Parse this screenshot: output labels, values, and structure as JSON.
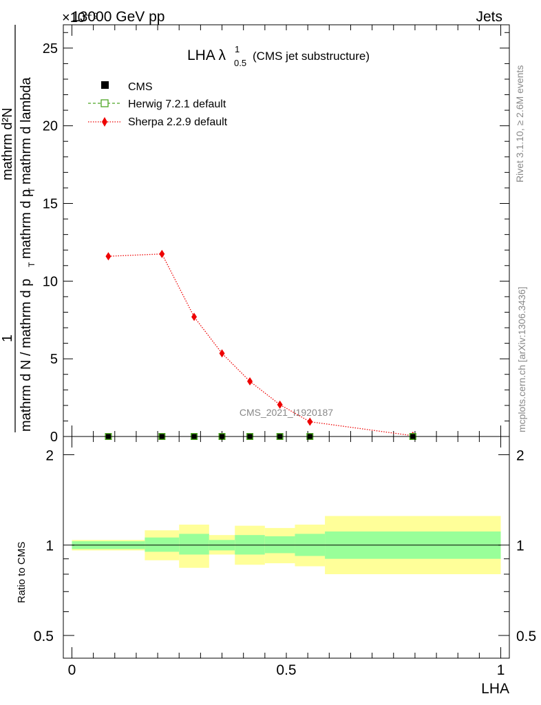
{
  "header": {
    "left": "13000 GeV pp",
    "right": "Jets",
    "exponent": "×10⁻⁹"
  },
  "side_labels": {
    "top": "Rivet 3.1.10, ≥ 2.6M events",
    "bottom": "mcplots.cern.ch [arXiv:1306.3436]"
  },
  "watermark": "CMS_2021_I1920187",
  "chart_data": [
    {
      "type": "line",
      "title_main": "LHA λ",
      "title_sup": "1",
      "title_sub": "0.5",
      "title_suffix": "(CMS jet substructure)",
      "ylabel_numerator": "1",
      "ylabel_denominator": "mathrm d N / mathrm d p_T mathrm d p_T mathrm d lambda",
      "ylabel_lines": [
        "1",
        "mathrm d N / mathrm d p",
        "T",
        "mathrm d p",
        "T",
        "mathrm d lambda",
        "mathrm d²N"
      ],
      "xlim": [
        -0.02,
        1.02
      ],
      "ylim": [
        0,
        26.5
      ],
      "y_ticks": [
        0,
        5,
        10,
        15,
        20,
        25
      ],
      "y_tick_labels": [
        "0",
        "5",
        "10",
        "15",
        "20",
        "25"
      ],
      "legend": [
        {
          "name": "CMS",
          "marker": "square",
          "color": "#000000"
        },
        {
          "name": "Herwig 7.2.1 default",
          "marker": "open-square",
          "color": "#4aa320"
        },
        {
          "name": "Sherpa 2.2.9 default",
          "marker": "diamond",
          "color": "#ee0000"
        }
      ],
      "series": [
        {
          "name": "CMS",
          "x": [
            0.085,
            0.21,
            0.285,
            0.35,
            0.415,
            0.485,
            0.555,
            0.795
          ],
          "y": [
            0.0,
            0.0,
            0.0,
            0.0,
            0.0,
            0.0,
            0.0,
            0.0
          ]
        },
        {
          "name": "Herwig 7.2.1 default",
          "x": [
            0.085,
            0.21,
            0.285,
            0.35,
            0.415,
            0.485,
            0.555,
            0.795
          ],
          "y": [
            0.0,
            0.0,
            0.0,
            0.0,
            0.0,
            0.0,
            0.0,
            0.0
          ]
        },
        {
          "name": "Sherpa 2.2.9 default",
          "x": [
            0.085,
            0.21,
            0.285,
            0.35,
            0.415,
            0.485,
            0.555,
            0.795
          ],
          "y": [
            11.6,
            11.75,
            7.7,
            5.35,
            3.55,
            2.05,
            0.95,
            0.05
          ]
        }
      ]
    },
    {
      "type": "area",
      "ylabel": "Ratio to CMS",
      "xlabel": "LHA",
      "xlim": [
        -0.02,
        1.02
      ],
      "ylim": [
        0.42,
        2.3
      ],
      "y_ticks": [
        0.5,
        1,
        2
      ],
      "y_tick_labels": [
        "0.5",
        "1",
        "2"
      ],
      "x_ticks": [
        0,
        0.5,
        1
      ],
      "x_tick_labels": [
        "0",
        "0.5",
        "1"
      ],
      "bins": [
        {
          "x0": 0.0,
          "x1": 0.17,
          "in_lo": 0.97,
          "in_hi": 1.03,
          "out_lo": 0.96,
          "out_hi": 1.04
        },
        {
          "x0": 0.17,
          "x1": 0.25,
          "in_lo": 0.95,
          "in_hi": 1.06,
          "out_lo": 0.89,
          "out_hi": 1.12
        },
        {
          "x0": 0.25,
          "x1": 0.32,
          "in_lo": 0.93,
          "in_hi": 1.09,
          "out_lo": 0.84,
          "out_hi": 1.17
        },
        {
          "x0": 0.32,
          "x1": 0.38,
          "in_lo": 0.96,
          "in_hi": 1.04,
          "out_lo": 0.93,
          "out_hi": 1.08
        },
        {
          "x0": 0.38,
          "x1": 0.45,
          "in_lo": 0.93,
          "in_hi": 1.08,
          "out_lo": 0.86,
          "out_hi": 1.16
        },
        {
          "x0": 0.45,
          "x1": 0.52,
          "in_lo": 0.94,
          "in_hi": 1.07,
          "out_lo": 0.87,
          "out_hi": 1.14
        },
        {
          "x0": 0.52,
          "x1": 0.59,
          "in_lo": 0.92,
          "in_hi": 1.09,
          "out_lo": 0.85,
          "out_hi": 1.17
        },
        {
          "x0": 0.59,
          "x1": 1.0,
          "in_lo": 0.9,
          "in_hi": 1.11,
          "out_lo": 0.8,
          "out_hi": 1.25
        }
      ],
      "colors": {
        "inner": "#99ff99",
        "outer": "#ffff99",
        "line": "#000000"
      }
    }
  ]
}
